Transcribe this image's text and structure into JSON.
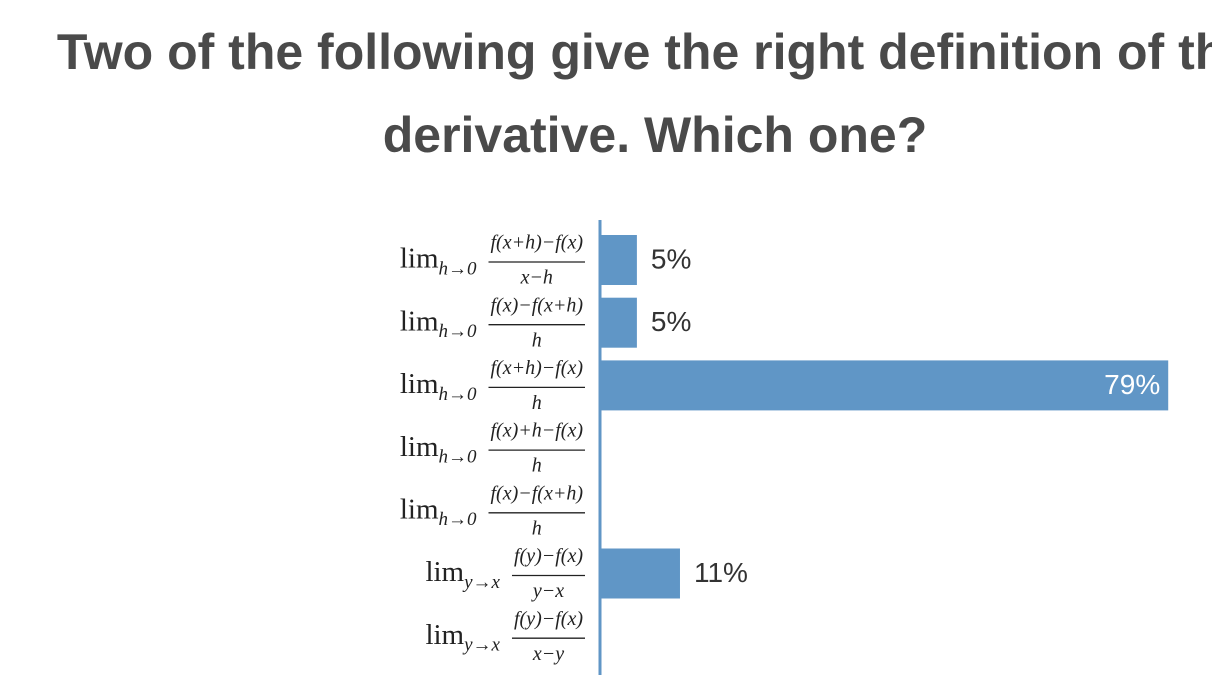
{
  "chart_data": {
    "type": "bar",
    "orientation": "horizontal",
    "title": [
      "Two of the following give the right definition of the",
      "derivative. Which one?"
    ],
    "categories": [
      {
        "limit": "lim",
        "sub": "h→0",
        "num": "f(x+h)−f(x)",
        "den": "x−h"
      },
      {
        "limit": "lim",
        "sub": "h→0",
        "num": "f(x)−f(x+h)",
        "den": "h"
      },
      {
        "limit": "lim",
        "sub": "h→0",
        "num": "f(x+h)−f(x)",
        "den": "h"
      },
      {
        "limit": "lim",
        "sub": "h→0",
        "num": "f(x)+h−f(x)",
        "den": "h"
      },
      {
        "limit": "lim",
        "sub": "h→0",
        "num": "f(x)−f(x+h)",
        "den": "h"
      },
      {
        "limit": "lim",
        "sub": "y→x",
        "num": "f(y)−f(x)",
        "den": "y−x"
      },
      {
        "limit": "lim",
        "sub": "y→x",
        "num": "f(y)−f(x)",
        "den": "x−y"
      }
    ],
    "values": [
      5,
      5,
      79,
      0,
      0,
      11,
      0
    ],
    "value_labels": [
      "5%",
      "5%",
      "79%",
      null,
      null,
      "11%",
      null
    ],
    "color": "#6096c6"
  }
}
